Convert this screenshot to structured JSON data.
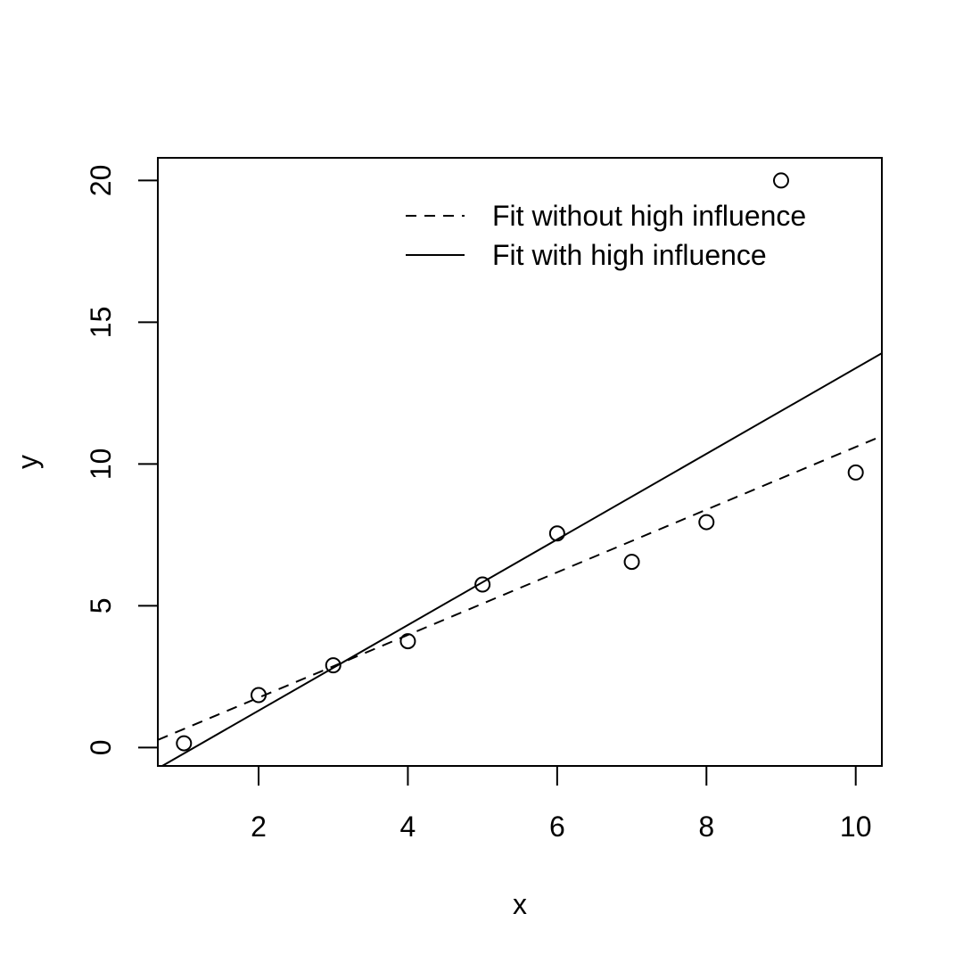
{
  "chart_data": {
    "type": "scatter",
    "xlabel": "x",
    "ylabel": "y",
    "xlim": [
      0.65,
      10.35
    ],
    "ylim": [
      -0.65,
      20.8
    ],
    "xticks": [
      2,
      4,
      6,
      8,
      10
    ],
    "yticks": [
      0,
      5,
      10,
      15,
      20
    ],
    "xtick_labels": [
      "2",
      "4",
      "6",
      "8",
      "10"
    ],
    "ytick_labels": [
      "0",
      "5",
      "10",
      "15",
      "20"
    ],
    "grid": false,
    "points": {
      "marker": "open-circle",
      "x": [
        1,
        2,
        3,
        4,
        5,
        6,
        7,
        8,
        9,
        10
      ],
      "y": [
        0.15,
        1.85,
        2.9,
        3.75,
        5.75,
        7.55,
        6.55,
        7.95,
        20.0,
        9.7
      ]
    },
    "lines": [
      {
        "name": "Fit without high influence",
        "style": "dashed",
        "intercept": -0.45,
        "slope": 1.105
      },
      {
        "name": "Fit with high influence",
        "style": "solid",
        "intercept": -1.72,
        "slope": 1.51
      }
    ],
    "legend": {
      "position": "top-right",
      "entries": [
        "Fit without high influence",
        "Fit with high influence"
      ]
    }
  }
}
